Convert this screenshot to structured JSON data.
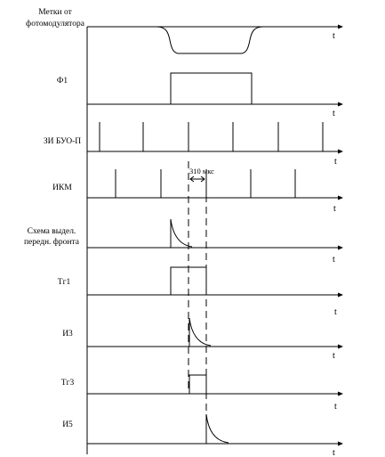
{
  "time_symbol": "t",
  "interval_note": "310 мкс",
  "rows": [
    {
      "id": "metki",
      "label_lines": [
        "Метки от",
        "фотомодулятора"
      ]
    },
    {
      "id": "f1",
      "label_lines": [
        "Ф1"
      ]
    },
    {
      "id": "zi_buo",
      "label_lines": [
        "ЗИ БУО-П"
      ]
    },
    {
      "id": "ikm",
      "label_lines": [
        "ИКМ"
      ]
    },
    {
      "id": "front",
      "label_lines": [
        "Схема выдел.",
        "передн. фронта"
      ]
    },
    {
      "id": "tg1",
      "label_lines": [
        "Тг1"
      ]
    },
    {
      "id": "i3",
      "label_lines": [
        "И3"
      ]
    },
    {
      "id": "tg3",
      "label_lines": [
        "Тг3"
      ]
    },
    {
      "id": "i5",
      "label_lines": [
        "И5"
      ]
    }
  ]
}
